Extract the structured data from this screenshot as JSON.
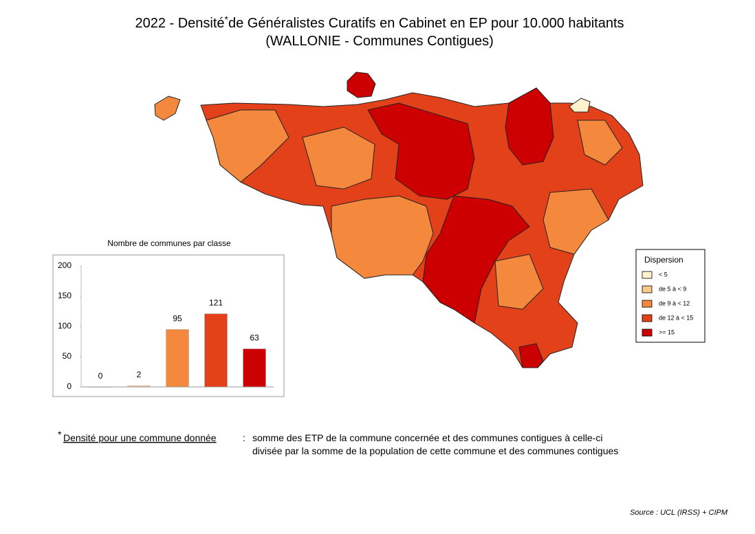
{
  "title": {
    "line1_start": "2022 - Densité",
    "asterisk": "*",
    "line1_end": "de Généralistes Curatifs en Cabinet en EP pour 10.000 habitants",
    "line2": "(WALLONIE - Communes Contigues)"
  },
  "legend": {
    "title": "Dispersion",
    "items": [
      {
        "label": "< 5",
        "color": "#fff2cc"
      },
      {
        "label": "de 5 à < 9",
        "color": "#f9c98a"
      },
      {
        "label": "de 9 à < 12",
        "color": "#f4883c"
      },
      {
        "label": "de 12 à < 15",
        "color": "#e3411a"
      },
      {
        "label": ">= 15",
        "color": "#cc0000"
      }
    ]
  },
  "chart_data": {
    "type": "bar",
    "title": "Nombre de communes par classe",
    "categories": [
      null,
      null,
      null,
      null,
      null
    ],
    "values": [
      0,
      2,
      95,
      121,
      63
    ],
    "colors": [
      "#fff2cc",
      "#f9c98a",
      "#f4883c",
      "#e3411a",
      "#cc0000"
    ],
    "ylim": [
      0,
      200
    ],
    "yticks": [
      0,
      50,
      100,
      150,
      200
    ]
  },
  "footnote": {
    "asterisk": "*",
    "term": "Densité pour une commune donnée",
    "separator": ":",
    "line1": "somme des ETP de la commune concernée et des communes contigues à celle-ci",
    "line2": "divisée par la somme de la population de cette commune et des communes contigues"
  },
  "source": "Source : UCL (IRSS) + CIPM"
}
